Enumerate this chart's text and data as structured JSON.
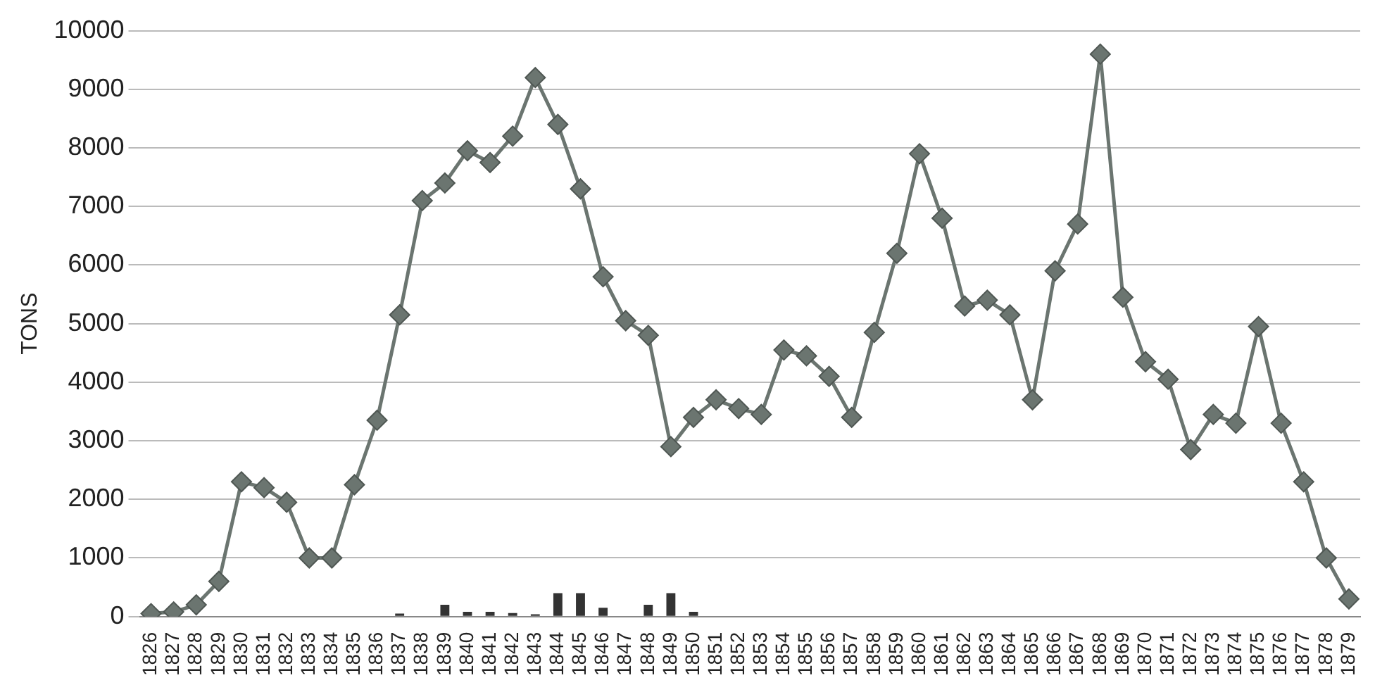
{
  "chart_data": {
    "type": "line",
    "ylabel": "TONS",
    "categories": [
      "1826",
      "1827",
      "1828",
      "1829",
      "1830",
      "1831",
      "1832",
      "1833",
      "1834",
      "1835",
      "1836",
      "1837",
      "1838",
      "1839",
      "1840",
      "1841",
      "1842",
      "1843",
      "1844",
      "1845",
      "1846",
      "1847",
      "1848",
      "1849",
      "1850",
      "1851",
      "1852",
      "1853",
      "1854",
      "1855",
      "1856",
      "1857",
      "1858",
      "1859",
      "1860",
      "1861",
      "1862",
      "1863",
      "1864",
      "1865",
      "1866",
      "1867",
      "1868",
      "1869",
      "1870",
      "1871",
      "1872",
      "1873",
      "1874",
      "1875",
      "1876",
      "1877",
      "1878",
      "1879"
    ],
    "series": [
      {
        "color": "#6b7570",
        "marker": "diamond",
        "values": [
          50,
          80,
          200,
          600,
          2300,
          2200,
          1950,
          1000,
          1000,
          2250,
          3350,
          5150,
          7100,
          7400,
          7950,
          7750,
          8200,
          9200,
          8400,
          7300,
          5800,
          5050,
          4800,
          2900,
          3400,
          3700,
          3550,
          3450,
          4550,
          4450,
          4100,
          3400,
          4850,
          6200,
          7900,
          6800,
          5300,
          5400,
          5150,
          3700,
          5900,
          6700,
          9600,
          5450,
          4350,
          4050,
          2850,
          3450,
          3300,
          4950,
          3300,
          2300,
          1000,
          300
        ]
      },
      {
        "type": "bar",
        "color": "#333333",
        "values": [
          0,
          0,
          0,
          0,
          0,
          0,
          0,
          0,
          0,
          0,
          0,
          50,
          0,
          200,
          80,
          80,
          60,
          40,
          400,
          400,
          150,
          0,
          200,
          400,
          80,
          0,
          0,
          0,
          0,
          0,
          0,
          0,
          0,
          0,
          0,
          0,
          0,
          0,
          0,
          0,
          0,
          0,
          0,
          0,
          0,
          0,
          0,
          0,
          0,
          0,
          0,
          0,
          0,
          0
        ]
      }
    ],
    "ylim": [
      0,
      10000
    ],
    "yticks": [
      0,
      1000,
      2000,
      3000,
      4000,
      5000,
      6000,
      7000,
      8000,
      9000,
      10000
    ],
    "grid": "y",
    "legend": false
  }
}
